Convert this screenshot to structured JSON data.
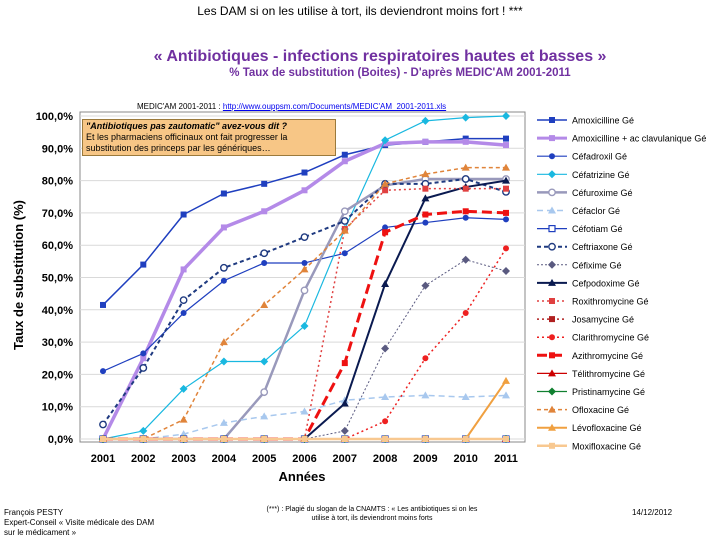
{
  "header": {
    "caption": "Les DAM si on les utilise à tort, ils deviendront moins fort ! ***",
    "title": "« Antibiotiques - infections respiratoires hautes et basses »",
    "subtitle": "% Taux de substitution (Boites) - D'après MEDIC'AM 2001-2011"
  },
  "source": {
    "label": "MEDIC'AM 2001-2011 :",
    "url": "http://www.ouppsm.com/Documents/MEDIC'AM_2001-2011.xls"
  },
  "callout": {
    "question": "\"Antibiotiques pas zautomatic\" avez-vous dit ?",
    "body": "Et les pharmaciens officinaux ont fait progresser la substitution des princeps par les génériques…"
  },
  "footer": {
    "author_line1": "François PESTY",
    "author_line2": "Expert-Conseil « Visite médicale des DAM sur le médicament »",
    "note": "(***) : Plagié du slogan de la CNAMTS : « Les antibiotiques si on les utilise à tort, ils deviendront moins forts",
    "date": "14/12/2012"
  },
  "chart_data": {
    "type": "line",
    "title": "« Antibiotiques - infections respiratoires hautes et basses »",
    "xlabel": "Années",
    "ylabel": "Taux de substitution (%)",
    "ylim": [
      0,
      100
    ],
    "yticks": [
      "0,0%",
      "10,0%",
      "20,0%",
      "30,0%",
      "40,0%",
      "50,0%",
      "60,0%",
      "70,0%",
      "80,0%",
      "90,0%",
      "100,0%"
    ],
    "x": [
      "2001",
      "2002",
      "2003",
      "2004",
      "2005",
      "2006",
      "2007",
      "2008",
      "2009",
      "2010",
      "2011"
    ],
    "series": [
      {
        "name": "Amoxicilline Gé",
        "color": "#1f3fbf",
        "width": 1.5,
        "dash": "",
        "marker": "square",
        "values": [
          41.5,
          54,
          69.5,
          76,
          79,
          82.5,
          88,
          91,
          92,
          93,
          93
        ]
      },
      {
        "name": "Amoxicilline + ac clavulanique Gé",
        "color": "#b48ae8",
        "width": 3.5,
        "dash": "",
        "marker": "square",
        "values": [
          0,
          25,
          52.5,
          65.5,
          70.5,
          77,
          86,
          91.5,
          92,
          92,
          91
        ]
      },
      {
        "name": "Céfadroxil Gé",
        "color": "#1f3fbf",
        "width": 1.2,
        "dash": "",
        "marker": "circle",
        "values": [
          21,
          26.5,
          39,
          49,
          54.5,
          54.5,
          57.5,
          65.5,
          67,
          68.5,
          68
        ]
      },
      {
        "name": "Céfatrizine Gé",
        "color": "#19b8e0",
        "width": 1.2,
        "dash": "",
        "marker": "diamond",
        "values": [
          0,
          2.5,
          15.5,
          24,
          24,
          35,
          65,
          92.5,
          98.5,
          99.5,
          100
        ]
      },
      {
        "name": "Céfuroxime Gé",
        "color": "#9999bb",
        "width": 2.5,
        "dash": "",
        "marker": "ocircle",
        "values": [
          0,
          0,
          0,
          0,
          14.5,
          46,
          70.5,
          78.5,
          80.5,
          80.5,
          80.5
        ]
      },
      {
        "name": "Céfaclor Gé",
        "color": "#a8c8ee",
        "width": 1.5,
        "dash": "6,4",
        "marker": "triangle",
        "values": [
          0,
          0,
          1.5,
          5,
          7,
          8.5,
          12,
          13,
          13.5,
          13,
          13.5
        ]
      },
      {
        "name": "Céfotiam Gé",
        "color": "#1f3fbf",
        "width": 1.2,
        "dash": "",
        "marker": "osquare",
        "values": [
          0,
          0,
          0,
          0,
          0,
          0,
          0,
          0,
          0,
          0,
          0
        ]
      },
      {
        "name": "Ceftriaxone Gé",
        "color": "#1f3a80",
        "width": 2,
        "dash": "4,3",
        "marker": "ocircle",
        "values": [
          4.5,
          22,
          43,
          53,
          57.5,
          62.5,
          67.5,
          79,
          79,
          80.5,
          76.5
        ]
      },
      {
        "name": "Céfixime Gé",
        "color": "#5a5a80",
        "width": 1,
        "dash": "2,2",
        "marker": "diamond",
        "values": [
          0,
          0,
          0,
          0,
          0,
          0,
          2.5,
          28,
          47.5,
          55.5,
          52
        ]
      },
      {
        "name": "Cefpodoxime Gé",
        "color": "#0a1a50",
        "width": 2,
        "dash": "",
        "marker": "triangle",
        "values": [
          0,
          0,
          0,
          0,
          0,
          0,
          11,
          48,
          74.5,
          78,
          80
        ]
      },
      {
        "name": "Roxithromycine Gé",
        "color": "#e04040",
        "width": 1.5,
        "dash": "2,3",
        "marker": "square",
        "values": [
          0,
          0,
          0,
          0,
          0,
          0,
          65,
          77,
          77.5,
          77.5,
          77.5
        ]
      },
      {
        "name": "Josamycine Gé",
        "color": "#b02020",
        "width": 1.5,
        "dash": "2,3",
        "marker": "square",
        "values": [
          0,
          0,
          0,
          0,
          0,
          0,
          0,
          0,
          0,
          0,
          0
        ]
      },
      {
        "name": "Clarithromycine Gé",
        "color": "#ee2020",
        "width": 1.5,
        "dash": "2,3",
        "marker": "circle",
        "values": [
          0,
          0,
          0,
          0,
          0,
          0,
          0,
          5.5,
          25,
          39,
          59
        ]
      },
      {
        "name": "Azithromycine Gé",
        "color": "#ee1111",
        "width": 3,
        "dash": "10,5",
        "marker": "square",
        "values": [
          0,
          0,
          0,
          0,
          0,
          0,
          23.5,
          64,
          69.5,
          70.5,
          70
        ]
      },
      {
        "name": "Télithromycine Gé",
        "color": "#cc0000",
        "width": 1.2,
        "dash": "",
        "marker": "triangle",
        "values": [
          0,
          0,
          0,
          0,
          0,
          0,
          0,
          0,
          0,
          0,
          0
        ]
      },
      {
        "name": "Pristinamycine Gé",
        "color": "#108030",
        "width": 1.2,
        "dash": "",
        "marker": "diamond",
        "values": [
          0,
          0,
          0,
          0,
          0,
          0,
          0,
          0,
          0,
          0,
          0
        ]
      },
      {
        "name": "Ofloxacine Gé",
        "color": "#e0843a",
        "width": 1.5,
        "dash": "4,3",
        "marker": "triangle",
        "values": [
          0,
          0,
          6,
          30,
          41.5,
          52.5,
          64.5,
          79,
          82,
          84,
          84
        ]
      },
      {
        "name": "Lévofloxacine Gé",
        "color": "#f0a040",
        "width": 2,
        "dash": "",
        "marker": "triangle",
        "values": [
          0,
          0,
          0,
          0,
          0,
          0,
          0,
          0,
          0,
          0,
          18
        ]
      },
      {
        "name": "Moxifloxacine Gé",
        "color": "#f8c890",
        "width": 2.5,
        "dash": "",
        "marker": "square",
        "values": [
          0,
          0,
          0,
          0,
          0,
          0,
          0,
          0,
          0,
          0,
          0
        ]
      }
    ]
  }
}
